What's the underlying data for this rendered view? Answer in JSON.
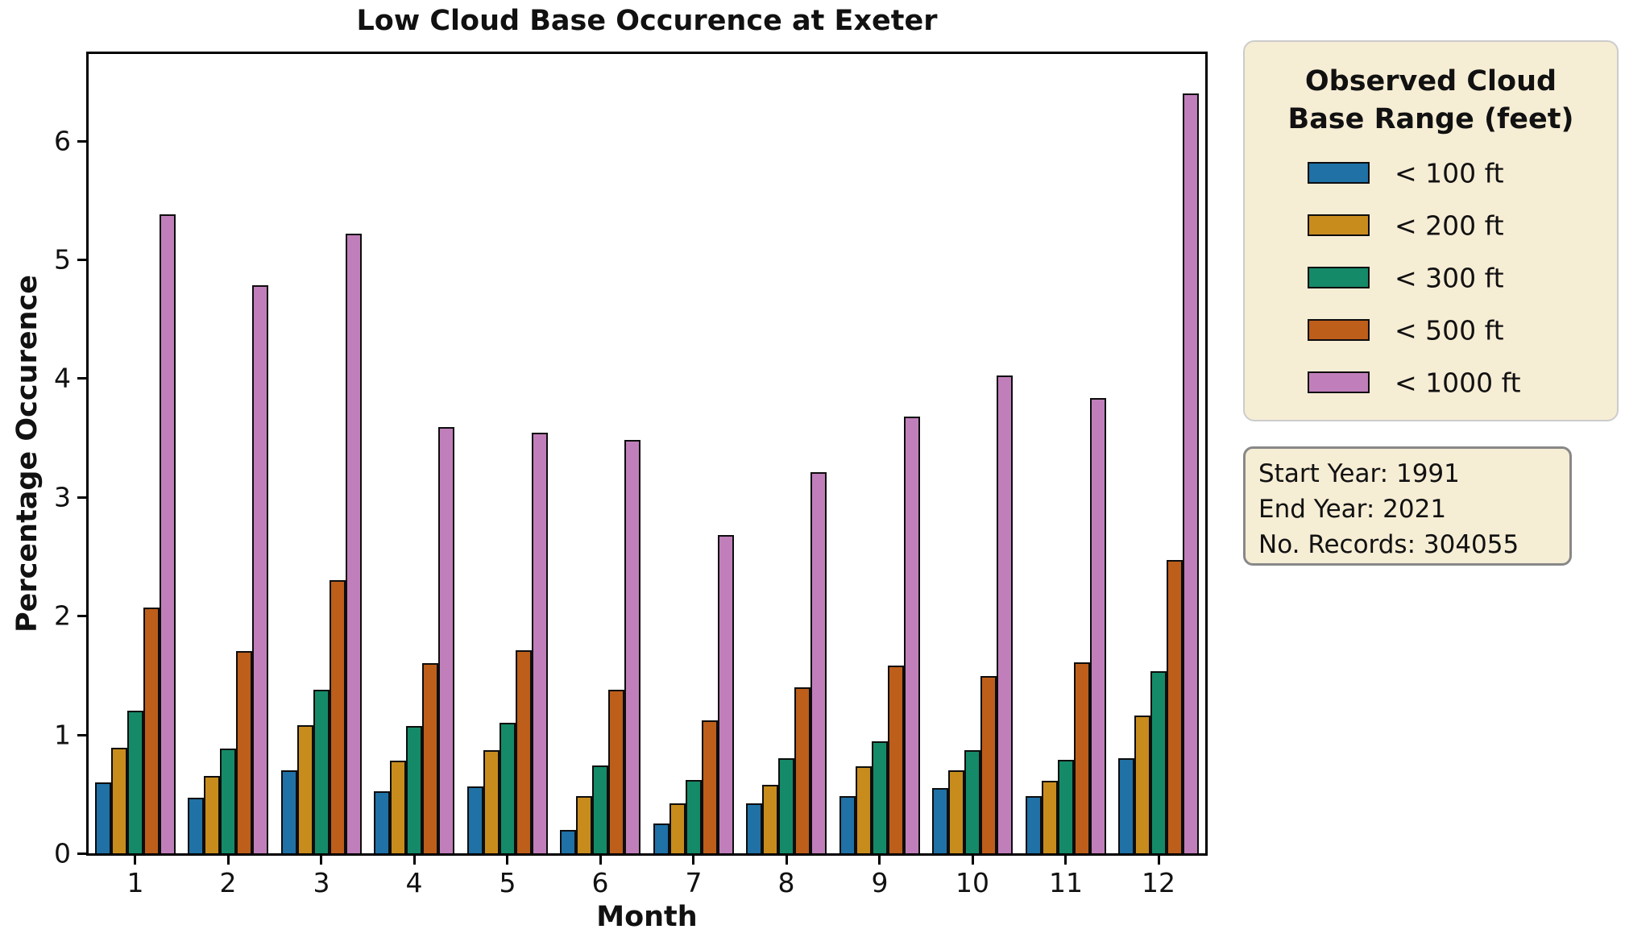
{
  "title": "Low Cloud Base Occurence at Exeter",
  "chart_data": {
    "type": "bar",
    "title": "Low Cloud Base Occurence at Exeter",
    "xlabel": "Month",
    "ylabel": "Percentage Occurence",
    "categories": [
      "1",
      "2",
      "3",
      "4",
      "5",
      "6",
      "7",
      "8",
      "9",
      "10",
      "11",
      "12"
    ],
    "y_ticks": [
      0,
      1,
      2,
      3,
      4,
      5,
      6
    ],
    "ylim": [
      0,
      6.73
    ],
    "grid": false,
    "bar_edge_color": "#0d0d0d",
    "legend_position": "outside-right-top",
    "series": [
      {
        "name": "< 100 ft",
        "color": "#1f71a6",
        "values": [
          0.6,
          0.47,
          0.7,
          0.52,
          0.56,
          0.2,
          0.25,
          0.42,
          0.48,
          0.55,
          0.48,
          0.8
        ]
      },
      {
        "name": "< 200 ft",
        "color": "#c88c1d",
        "values": [
          0.89,
          0.65,
          1.08,
          0.78,
          0.87,
          0.48,
          0.42,
          0.58,
          0.73,
          0.7,
          0.61,
          1.16
        ]
      },
      {
        "name": "< 300 ft",
        "color": "#158a68",
        "values": [
          1.2,
          0.88,
          1.38,
          1.07,
          1.1,
          0.74,
          0.62,
          0.8,
          0.94,
          0.87,
          0.79,
          1.53
        ]
      },
      {
        "name": "< 500 ft",
        "color": "#bd5e1a",
        "values": [
          2.07,
          1.7,
          2.3,
          1.6,
          1.71,
          1.38,
          1.12,
          1.4,
          1.58,
          1.49,
          1.61,
          2.47
        ]
      },
      {
        "name": "< 1000 ft",
        "color": "#c07fba",
        "values": [
          5.38,
          4.78,
          5.22,
          3.59,
          3.54,
          3.48,
          2.68,
          3.21,
          3.68,
          4.02,
          3.83,
          6.4
        ]
      }
    ]
  },
  "legend": {
    "title_line1": "Observed Cloud",
    "title_line2": "Base Range (feet)",
    "bg_color": "#f6edd5"
  },
  "info_box": {
    "lines": [
      "Start Year: 1991",
      "End Year: 2021",
      "No. Records: 304055"
    ]
  }
}
